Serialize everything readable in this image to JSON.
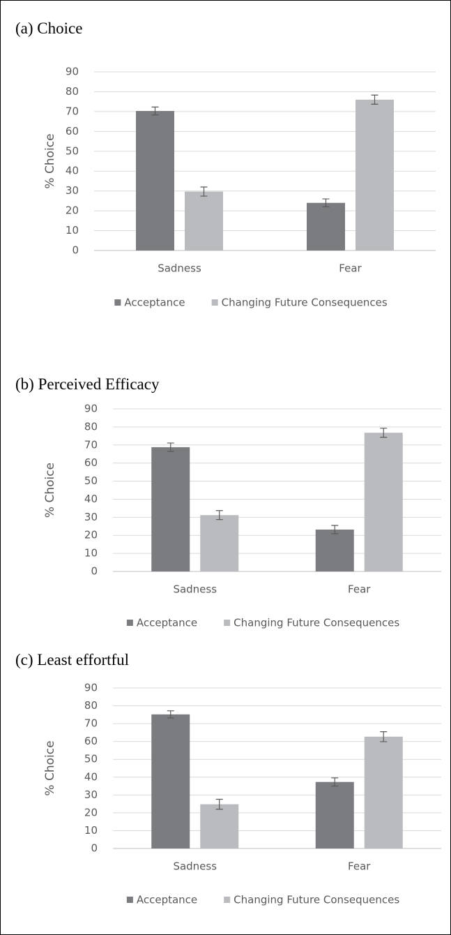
{
  "chart_data": [
    {
      "type": "bar",
      "title": "(a) Choice",
      "y_label": "% Choice",
      "categories": [
        "Sadness",
        "Fear"
      ],
      "series": [
        {
          "name": "Acceptance",
          "color": "#7b7c80",
          "values": [
            70.3,
            24
          ],
          "errors": [
            2,
            2
          ]
        },
        {
          "name": "Changing Future Consequences",
          "color": "#babbbf",
          "values": [
            29.7,
            76
          ],
          "errors": [
            2.3,
            2.3
          ]
        }
      ],
      "ylim": [
        0,
        90
      ],
      "yticks": [
        0,
        10,
        20,
        30,
        40,
        50,
        60,
        70,
        80,
        90
      ],
      "grid": true
    },
    {
      "type": "bar",
      "title": "(b) Perceived Efficacy",
      "y_label": "% Choice",
      "categories": [
        "Sadness",
        "Fear"
      ],
      "series": [
        {
          "name": "Acceptance",
          "color": "#7b7c80",
          "values": [
            68.8,
            23.2
          ],
          "errors": [
            2.3,
            2.3
          ]
        },
        {
          "name": "Changing Future Consequences",
          "color": "#babbbf",
          "values": [
            31.2,
            76.8
          ],
          "errors": [
            2.5,
            2.5
          ]
        }
      ],
      "ylim": [
        0,
        90
      ],
      "yticks": [
        0,
        10,
        20,
        30,
        40,
        50,
        60,
        70,
        80,
        90
      ],
      "grid": true
    },
    {
      "type": "bar",
      "title": "(c) Least effortful",
      "y_label": "% Choice",
      "categories": [
        "Sadness",
        "Fear"
      ],
      "series": [
        {
          "name": "Acceptance",
          "color": "#7b7c80",
          "values": [
            75.2,
            37.3
          ],
          "errors": [
            2,
            2.3
          ]
        },
        {
          "name": "Changing Future Consequences",
          "color": "#babbbf",
          "values": [
            24.8,
            62.7
          ],
          "errors": [
            2.8,
            2.8
          ]
        }
      ],
      "ylim": [
        0,
        90
      ],
      "yticks": [
        0,
        10,
        20,
        30,
        40,
        50,
        60,
        70,
        80,
        90
      ],
      "grid": true
    }
  ]
}
